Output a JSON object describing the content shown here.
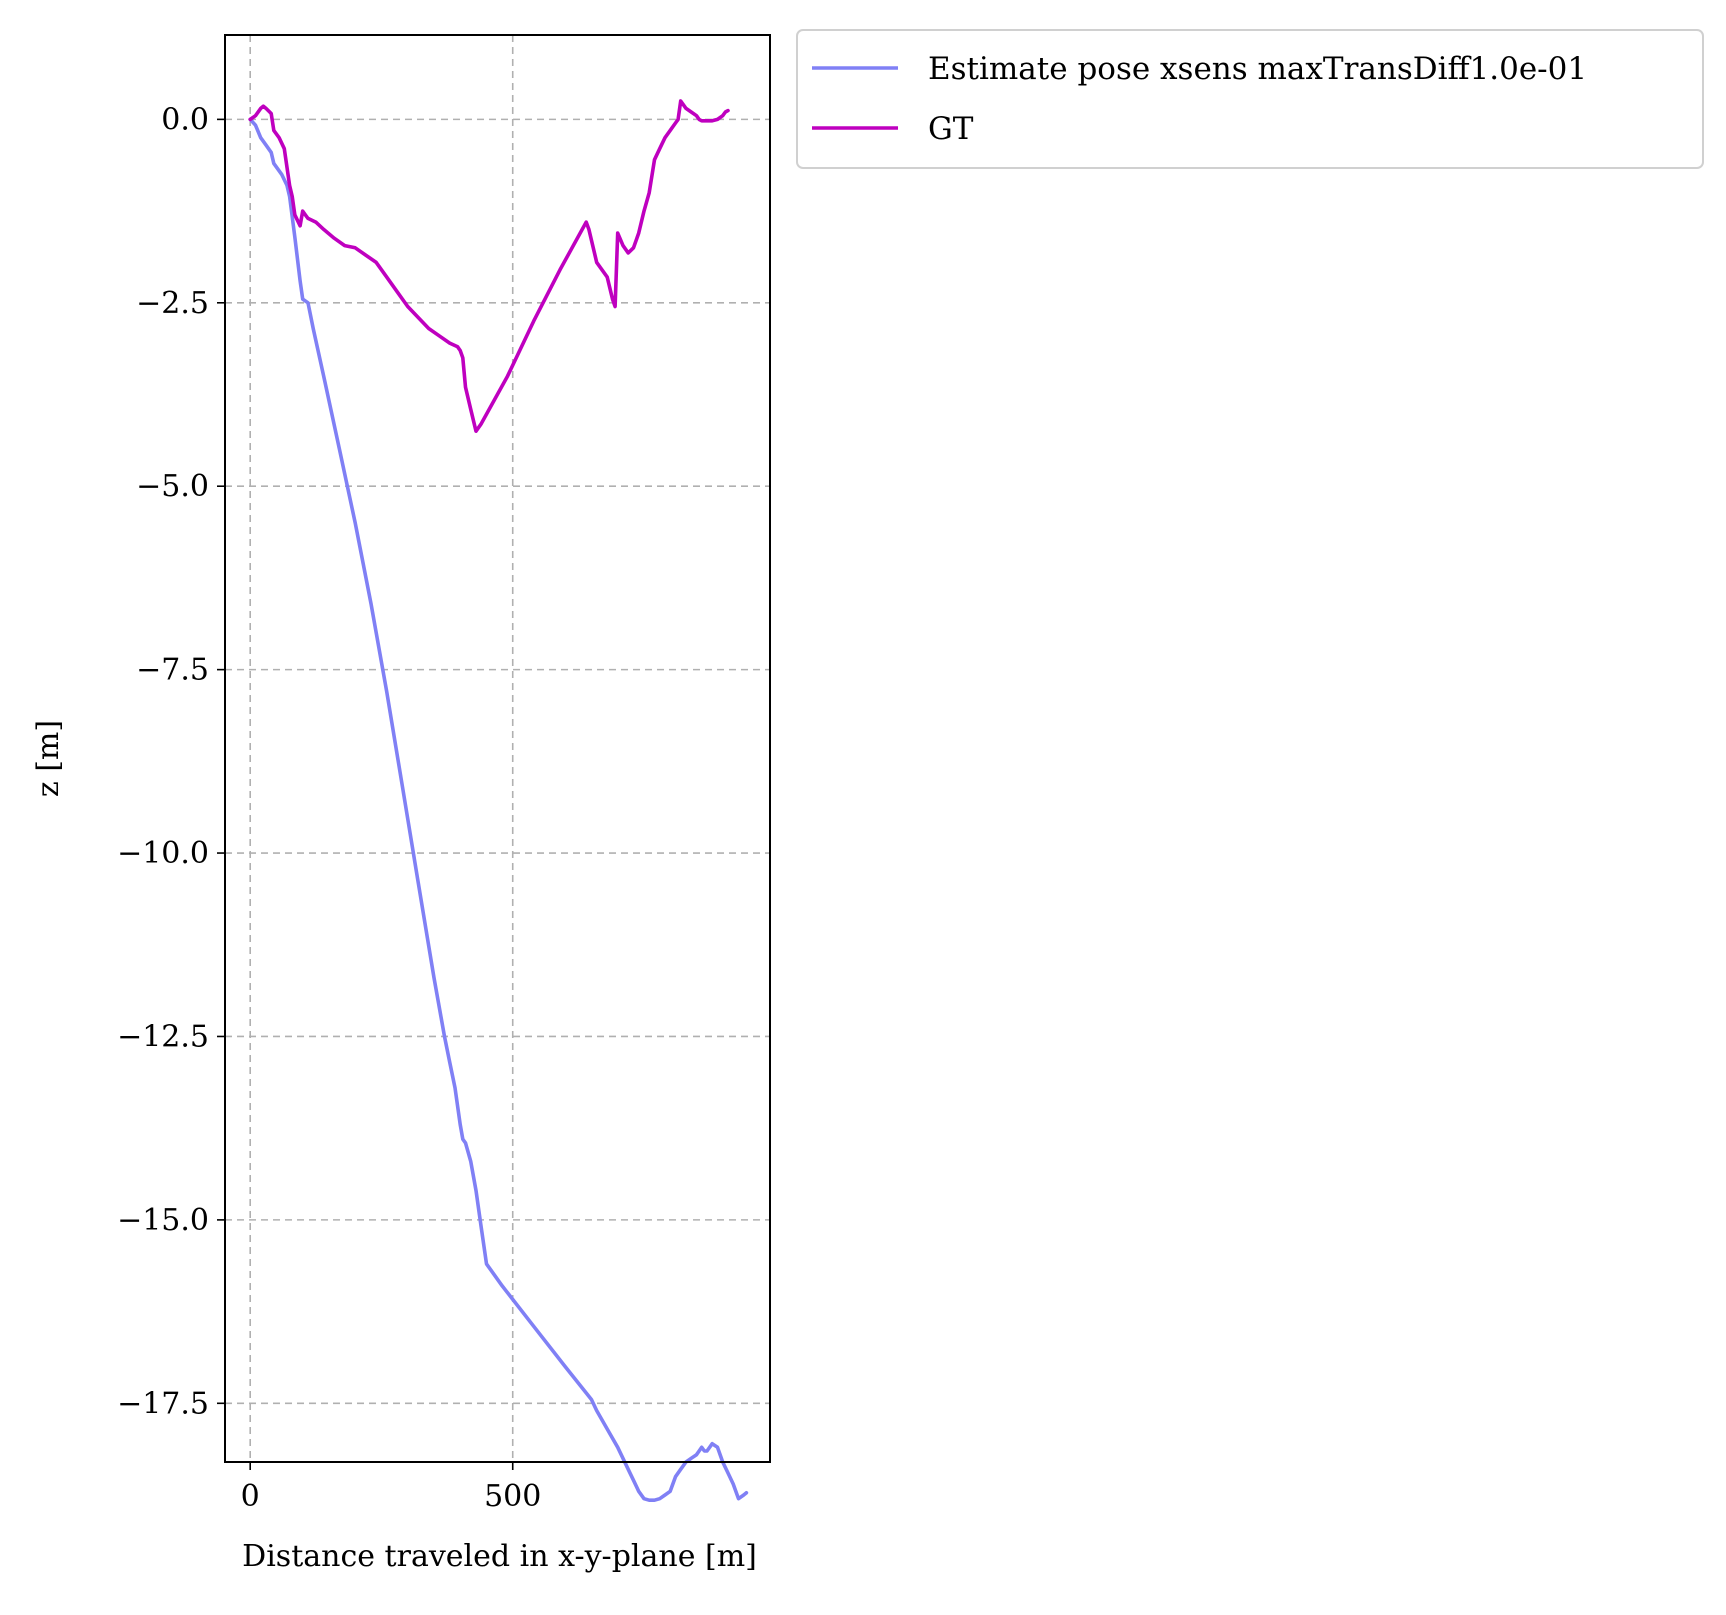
{
  "chart_data": {
    "type": "line",
    "xlabel": "Distance traveled in x-y-plane [m]",
    "ylabel": "z [m]",
    "xlim": [
      -48,
      990
    ],
    "ylim": [
      -18.3,
      1.15
    ],
    "x_ticks": [
      0,
      500
    ],
    "x_tick_labels": [
      "0",
      "500"
    ],
    "y_ticks": [
      0.0,
      -2.5,
      -5.0,
      -7.5,
      -10.0,
      -12.5,
      -15.0,
      -17.5
    ],
    "y_tick_labels": [
      "0.0",
      "−2.5",
      "−5.0",
      "−7.5",
      "−10.0",
      "−12.5",
      "−15.0",
      "−17.5"
    ],
    "grid": true,
    "legend_position": "outside-top-right",
    "series": [
      {
        "name": "Estimate pose xsens maxTransDiff1.0e-01",
        "color": "#8080f5",
        "x": [
          0,
          10,
          20,
          30,
          40,
          45,
          60,
          70,
          75,
          85,
          95,
          100,
          110,
          120,
          140,
          170,
          200,
          230,
          260,
          290,
          320,
          350,
          370,
          380,
          390,
          400,
          405,
          410,
          420,
          430,
          440,
          450,
          480,
          540,
          600,
          650,
          660,
          680,
          700,
          720,
          730,
          740,
          750,
          760,
          770,
          780,
          790,
          800,
          810,
          820,
          830,
          840,
          850,
          855,
          860,
          865,
          870,
          880,
          890,
          900,
          910,
          920,
          930,
          940,
          945
        ],
        "y": [
          0.0,
          -0.08,
          -0.25,
          -0.35,
          -0.45,
          -0.6,
          -0.75,
          -0.9,
          -1.05,
          -1.6,
          -2.2,
          -2.45,
          -2.5,
          -2.85,
          -3.5,
          -4.5,
          -5.5,
          -6.6,
          -7.8,
          -9.1,
          -10.4,
          -11.7,
          -12.5,
          -12.85,
          -13.2,
          -13.7,
          -13.9,
          -13.95,
          -14.2,
          -14.6,
          -15.1,
          -15.6,
          -15.9,
          -16.45,
          -17.0,
          -17.45,
          -17.6,
          -17.85,
          -18.1,
          -18.4,
          -18.55,
          -18.7,
          -18.8,
          -18.82,
          -18.82,
          -18.8,
          -18.75,
          -18.7,
          -18.5,
          -18.4,
          -18.3,
          -18.25,
          -18.2,
          -18.15,
          -18.1,
          -18.15,
          -18.15,
          -18.05,
          -18.1,
          -18.3,
          -18.45,
          -18.6,
          -18.8,
          -18.75,
          -18.72
        ]
      },
      {
        "name": "GT",
        "color": "#bf00bf",
        "x": [
          0,
          10,
          20,
          25,
          30,
          40,
          45,
          55,
          65,
          75,
          80,
          85,
          95,
          100,
          105,
          110,
          125,
          140,
          160,
          180,
          200,
          220,
          240,
          260,
          280,
          300,
          320,
          340,
          360,
          380,
          395,
          400,
          405,
          410,
          420,
          430,
          440,
          490,
          540,
          590,
          640,
          645,
          650,
          660,
          680,
          690,
          695,
          700,
          710,
          720,
          730,
          740,
          750,
          760,
          770,
          780,
          790,
          800,
          810,
          815,
          820,
          830,
          840,
          850,
          855,
          860,
          870,
          880,
          890,
          900,
          905,
          910
        ],
        "y": [
          0.0,
          0.05,
          0.15,
          0.18,
          0.15,
          0.08,
          -0.15,
          -0.25,
          -0.4,
          -0.9,
          -1.05,
          -1.3,
          -1.45,
          -1.25,
          -1.3,
          -1.35,
          -1.4,
          -1.5,
          -1.62,
          -1.72,
          -1.75,
          -1.85,
          -1.95,
          -2.15,
          -2.35,
          -2.55,
          -2.7,
          -2.85,
          -2.95,
          -3.05,
          -3.1,
          -3.15,
          -3.25,
          -3.65,
          -3.95,
          -4.25,
          -4.15,
          -3.5,
          -2.75,
          -2.05,
          -1.4,
          -1.5,
          -1.65,
          -1.95,
          -2.15,
          -2.45,
          -2.55,
          -1.55,
          -1.72,
          -1.82,
          -1.75,
          -1.55,
          -1.25,
          -1.0,
          -0.55,
          -0.4,
          -0.25,
          -0.15,
          -0.05,
          0.0,
          0.25,
          0.15,
          0.1,
          0.05,
          0.0,
          -0.02,
          -0.02,
          -0.02,
          0.0,
          0.05,
          0.1,
          0.12
        ]
      }
    ]
  }
}
